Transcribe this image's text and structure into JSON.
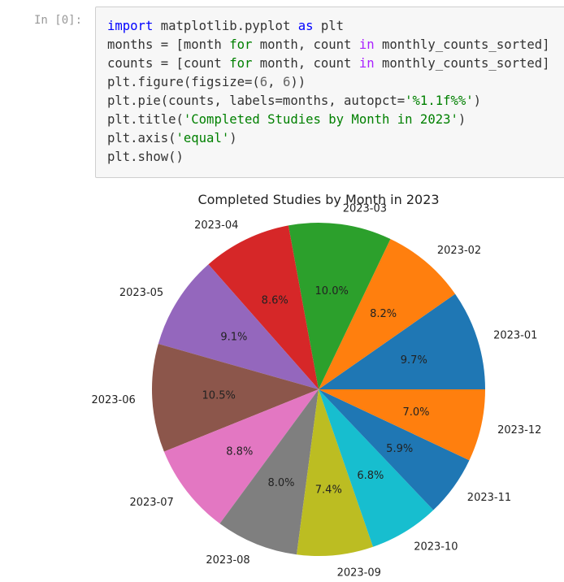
{
  "cell": {
    "prompt": "In [0]:",
    "code_lines": [
      [
        {
          "t": "import",
          "c": "kw"
        },
        {
          "t": " matplotlib.pyplot "
        },
        {
          "t": "as",
          "c": "kw"
        },
        {
          "t": " plt"
        }
      ],
      [
        {
          "t": "months = [month "
        },
        {
          "t": "for",
          "c": "kw-for"
        },
        {
          "t": " month, count "
        },
        {
          "t": "in",
          "c": "kw-in"
        },
        {
          "t": " monthly_counts_sorted]"
        }
      ],
      [
        {
          "t": "counts = [count "
        },
        {
          "t": "for",
          "c": "kw-for"
        },
        {
          "t": " month, count "
        },
        {
          "t": "in",
          "c": "kw-in"
        },
        {
          "t": " monthly_counts_sorted]"
        }
      ],
      [
        {
          "t": "plt.figure(figsize=("
        },
        {
          "t": "6",
          "c": "num"
        },
        {
          "t": ", "
        },
        {
          "t": "6",
          "c": "num"
        },
        {
          "t": "))"
        }
      ],
      [
        {
          "t": "plt.pie(counts, labels=months, autopct="
        },
        {
          "t": "'%1.1f%%'",
          "c": "str"
        },
        {
          "t": ")"
        }
      ],
      [
        {
          "t": "plt.title("
        },
        {
          "t": "'Completed Studies by Month in 2023'",
          "c": "str"
        },
        {
          "t": ")"
        }
      ],
      [
        {
          "t": "plt.axis("
        },
        {
          "t": "'equal'",
          "c": "str"
        },
        {
          "t": ")"
        }
      ],
      [
        {
          "t": "plt.show()"
        }
      ]
    ]
  },
  "chart_data": {
    "type": "pie",
    "title": "Completed Studies by Month in 2023",
    "start_angle_deg": 0,
    "direction": "counterclockwise",
    "slices": [
      {
        "label": "2023-01",
        "pct": 9.7,
        "color": "#1f77b4"
      },
      {
        "label": "2023-02",
        "pct": 8.2,
        "color": "#ff7f0e"
      },
      {
        "label": "2023-03",
        "pct": 10.0,
        "color": "#2ca02c"
      },
      {
        "label": "2023-04",
        "pct": 8.6,
        "color": "#d62728"
      },
      {
        "label": "2023-05",
        "pct": 9.1,
        "color": "#9467bd"
      },
      {
        "label": "2023-06",
        "pct": 10.5,
        "color": "#8c564b"
      },
      {
        "label": "2023-07",
        "pct": 8.8,
        "color": "#e377c2"
      },
      {
        "label": "2023-08",
        "pct": 8.0,
        "color": "#7f7f7f"
      },
      {
        "label": "2023-09",
        "pct": 7.4,
        "color": "#bcbd22"
      },
      {
        "label": "2023-10",
        "pct": 6.8,
        "color": "#17becf"
      },
      {
        "label": "2023-11",
        "pct": 5.9,
        "color": "#1f77b4"
      },
      {
        "label": "2023-12",
        "pct": 7.0,
        "color": "#ff7f0e"
      }
    ]
  }
}
